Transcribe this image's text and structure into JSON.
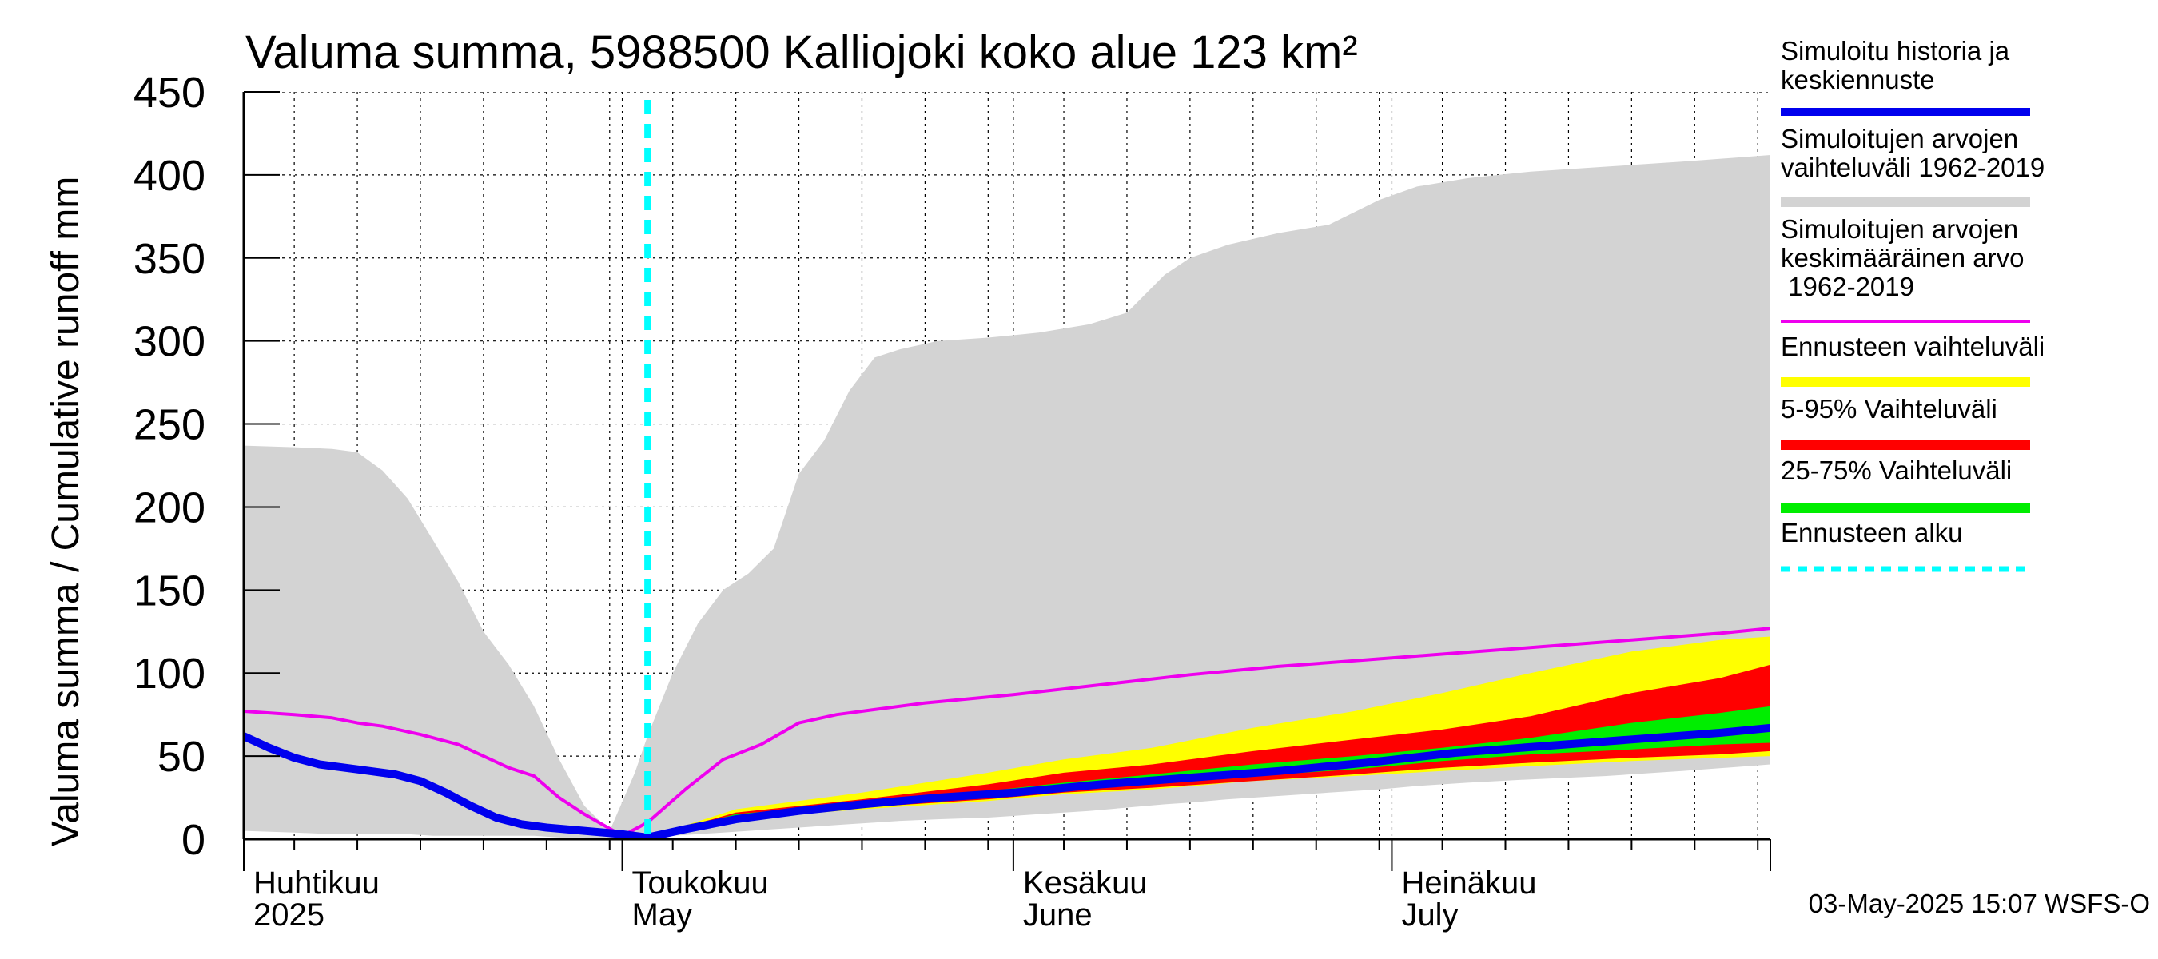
{
  "chart_data": {
    "type": "area",
    "title": "Valuma summa, 5988500 Kalliojoki koko alue 123 km²",
    "ylabel": "Valuma summa / Cumulative runoff    mm",
    "ylim": [
      0,
      450
    ],
    "yticks": [
      0,
      50,
      100,
      150,
      200,
      250,
      300,
      350,
      400,
      450
    ],
    "xlim": [
      "2025-04-01",
      "2025-07-31"
    ],
    "grid": true,
    "legend_position": "right",
    "x_month_labels": [
      {
        "date": "2025-04-01",
        "fi": "Huhtikuu",
        "en": "2025"
      },
      {
        "date": "2025-05-01",
        "fi": "Toukokuu",
        "en": "May"
      },
      {
        "date": "2025-06-01",
        "fi": "Kesäkuu",
        "en": "June"
      },
      {
        "date": "2025-07-01",
        "fi": "Heinäkuu",
        "en": "July"
      }
    ],
    "forecast_start": "2025-05-03",
    "timestamp": "03-May-2025 15:07 WSFS-O",
    "historical_range": {
      "name": "Simuloitujen arvojen vaihteluväli 1962-2019",
      "color": "#d3d3d3",
      "x": [
        "2025-04-01",
        "2025-04-05",
        "2025-04-08",
        "2025-04-10",
        "2025-04-12",
        "2025-04-14",
        "2025-04-16",
        "2025-04-18",
        "2025-04-20",
        "2025-04-22",
        "2025-04-24",
        "2025-04-26",
        "2025-04-28",
        "2025-04-30",
        "2025-05-02",
        "2025-05-03",
        "2025-05-05",
        "2025-05-07",
        "2025-05-09",
        "2025-05-11",
        "2025-05-13",
        "2025-05-15",
        "2025-05-17",
        "2025-05-19",
        "2025-05-21",
        "2025-05-23",
        "2025-05-26",
        "2025-05-30",
        "2025-06-03",
        "2025-06-07",
        "2025-06-10",
        "2025-06-13",
        "2025-06-15",
        "2025-06-18",
        "2025-06-22",
        "2025-06-26",
        "2025-06-30",
        "2025-07-03",
        "2025-07-07",
        "2025-07-12",
        "2025-07-18",
        "2025-07-24",
        "2025-07-31"
      ],
      "upper": [
        237,
        236,
        235,
        233,
        222,
        205,
        180,
        155,
        125,
        105,
        80,
        48,
        20,
        5,
        40,
        62,
        100,
        130,
        150,
        160,
        175,
        220,
        240,
        270,
        290,
        295,
        300,
        302,
        305,
        310,
        317,
        340,
        350,
        358,
        365,
        370,
        385,
        393,
        398,
        402,
        405,
        408,
        412
      ],
      "lower": [
        5,
        4,
        3,
        3,
        3,
        3,
        2,
        2,
        2,
        2,
        2,
        1,
        1,
        0,
        0,
        1,
        2,
        3,
        4,
        5,
        6,
        7,
        8,
        9,
        10,
        11,
        12,
        13,
        15,
        17,
        19,
        21,
        22,
        24,
        26,
        28,
        30,
        32,
        34,
        36,
        38,
        41,
        45
      ]
    },
    "historical_mean": {
      "name": "Simuloitujen arvojen keskimääräinen arvo 1962-2019",
      "color": "#ee00ee",
      "x": [
        "2025-04-01",
        "2025-04-05",
        "2025-04-08",
        "2025-04-10",
        "2025-04-12",
        "2025-04-15",
        "2025-04-18",
        "2025-04-20",
        "2025-04-22",
        "2025-04-24",
        "2025-04-26",
        "2025-04-28",
        "2025-05-01",
        "2025-05-03",
        "2025-05-06",
        "2025-05-09",
        "2025-05-12",
        "2025-05-15",
        "2025-05-18",
        "2025-05-21",
        "2025-05-25",
        "2025-06-01",
        "2025-06-08",
        "2025-06-15",
        "2025-06-22",
        "2025-06-29",
        "2025-07-06",
        "2025-07-13",
        "2025-07-20",
        "2025-07-27",
        "2025-07-31"
      ],
      "y": [
        77,
        75,
        73,
        70,
        68,
        63,
        57,
        50,
        43,
        38,
        25,
        15,
        2,
        10,
        30,
        48,
        57,
        70,
        75,
        78,
        82,
        87,
        93,
        99,
        104,
        108,
        112,
        116,
        120,
        124,
        127
      ]
    },
    "forecast_bands": [
      {
        "name": "Ennusteen vaihteluväli",
        "color": "#ffff00",
        "x": [
          "2025-05-03",
          "2025-05-10",
          "2025-05-20",
          "2025-05-30",
          "2025-06-05",
          "2025-06-12",
          "2025-06-20",
          "2025-06-28",
          "2025-07-05",
          "2025-07-12",
          "2025-07-20",
          "2025-07-27",
          "2025-07-31"
        ],
        "upper": [
          1,
          18,
          28,
          40,
          48,
          55,
          67,
          77,
          88,
          100,
          113,
          120,
          122
        ],
        "lower": [
          1,
          12,
          18,
          23,
          27,
          30,
          35,
          38,
          41,
          44,
          47,
          49,
          50
        ]
      },
      {
        "name": "5-95% Vaihteluväli",
        "color": "#ff0000",
        "x": [
          "2025-05-03",
          "2025-05-10",
          "2025-05-20",
          "2025-05-30",
          "2025-06-05",
          "2025-06-12",
          "2025-06-20",
          "2025-06-28",
          "2025-07-05",
          "2025-07-12",
          "2025-07-20",
          "2025-07-27",
          "2025-07-31"
        ],
        "upper": [
          1,
          16,
          24,
          33,
          40,
          45,
          53,
          60,
          66,
          74,
          88,
          97,
          105
        ],
        "lower": [
          1,
          13,
          19,
          24,
          28,
          31,
          35,
          39,
          43,
          46,
          49,
          51,
          53
        ]
      },
      {
        "name": "25-75% Vaihteluväli",
        "color": "#00ee00",
        "x": [
          "2025-05-03",
          "2025-05-10",
          "2025-05-20",
          "2025-05-30",
          "2025-06-05",
          "2025-06-12",
          "2025-06-20",
          "2025-06-28",
          "2025-07-05",
          "2025-07-12",
          "2025-07-20",
          "2025-07-27",
          "2025-07-31"
        ],
        "upper": [
          1,
          15,
          22,
          29,
          34,
          39,
          45,
          50,
          55,
          61,
          70,
          76,
          80
        ],
        "lower": [
          1,
          13,
          19,
          25,
          29,
          33,
          38,
          42,
          47,
          51,
          54,
          57,
          58
        ]
      }
    ],
    "forecast_median": {
      "name": "Simuloitu historia ja keskiennuste",
      "color": "#0000ee",
      "x": [
        "2025-04-01",
        "2025-04-03",
        "2025-04-05",
        "2025-04-07",
        "2025-04-10",
        "2025-04-13",
        "2025-04-15",
        "2025-04-17",
        "2025-04-19",
        "2025-04-21",
        "2025-04-23",
        "2025-04-25",
        "2025-04-28",
        "2025-05-01",
        "2025-05-03",
        "2025-05-06",
        "2025-05-10",
        "2025-05-15",
        "2025-05-20",
        "2025-05-26",
        "2025-06-01",
        "2025-06-08",
        "2025-06-15",
        "2025-06-22",
        "2025-06-29",
        "2025-07-06",
        "2025-07-13",
        "2025-07-20",
        "2025-07-27",
        "2025-07-31"
      ],
      "y": [
        62,
        55,
        49,
        45,
        42,
        39,
        35,
        28,
        20,
        13,
        9,
        7,
        5,
        3,
        1,
        6,
        12,
        17,
        21,
        25,
        28,
        33,
        37,
        41,
        46,
        52,
        56,
        60,
        64,
        67
      ]
    },
    "legend": [
      {
        "label": "Simuloitu historia ja keskiennuste",
        "color": "#0000ee",
        "style": "line"
      },
      {
        "label": "Simuloitujen arvojen vaihteluväli 1962-2019",
        "color": "#d3d3d3",
        "style": "line"
      },
      {
        "label": "Simuloitujen arvojen keskimääräinen arvo 1962-2019",
        "color": "#ee00ee",
        "style": "thinline"
      },
      {
        "label": "Ennusteen vaihteluväli",
        "color": "#ffff00",
        "style": "line"
      },
      {
        "label": "5-95% Vaihteluväli",
        "color": "#ff0000",
        "style": "line"
      },
      {
        "label": "25-75% Vaihteluväli",
        "color": "#00ee00",
        "style": "line"
      },
      {
        "label": "Ennusteen alku",
        "color": "#00ffff",
        "style": "dashed"
      }
    ]
  }
}
